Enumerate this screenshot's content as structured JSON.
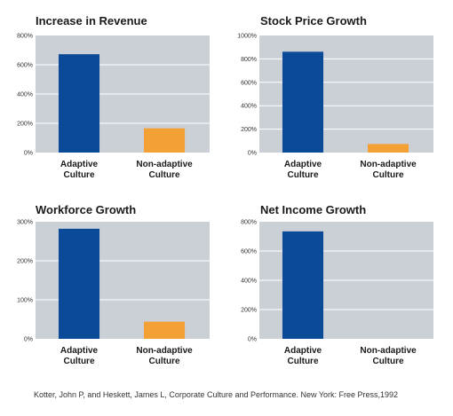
{
  "colors": {
    "plot_bg": "#cbd0d7",
    "grid": "#ffffff",
    "adaptive": "#0b4a96",
    "non_adaptive": "#f3a035"
  },
  "chart_data": [
    {
      "type": "bar",
      "title": "Increase in Revenue",
      "categories": [
        [
          "Adaptive",
          "Culture"
        ],
        [
          "Non-adaptive",
          "Culture"
        ]
      ],
      "values": [
        672,
        166
      ],
      "ylim": [
        0,
        800
      ],
      "yticks": [
        "0%",
        "200%",
        "400%",
        "600%",
        "800%"
      ],
      "grid": true
    },
    {
      "type": "bar",
      "title": "Stock Price Growth",
      "categories": [
        [
          "Adaptive",
          "Culture"
        ],
        [
          "Non-adaptive",
          "Culture"
        ]
      ],
      "values": [
        861,
        73
      ],
      "ylim": [
        0,
        1000
      ],
      "yticks": [
        "0%",
        "200%",
        "400%",
        "600%",
        "800%",
        "1000%"
      ],
      "grid": true
    },
    {
      "type": "bar",
      "title": "Workforce Growth",
      "categories": [
        [
          "Adaptive",
          "Culture"
        ],
        [
          "Non-adaptive",
          "Culture"
        ]
      ],
      "values": [
        282,
        44
      ],
      "ylim": [
        0,
        300
      ],
      "yticks": [
        "0%",
        "100%",
        "200%",
        "300%"
      ],
      "grid": true
    },
    {
      "type": "bar",
      "title": "Net Income Growth",
      "categories": [
        [
          "Adaptive",
          "Culture"
        ],
        [
          "Non-adaptive",
          "Culture"
        ]
      ],
      "values": [
        734,
        0
      ],
      "ylim": [
        0,
        800
      ],
      "yticks": [
        "0%",
        "200%",
        "400%",
        "600%",
        "800%"
      ],
      "grid": true
    }
  ],
  "citation": "Kotter, John P, and Heskett, James L, Corporate Culture and Performance. New York: Free Press,1992"
}
